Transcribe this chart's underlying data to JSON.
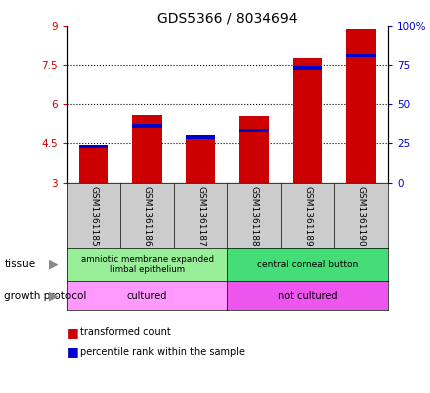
{
  "title": "GDS5366 / 8034694",
  "samples": [
    "GSM1361185",
    "GSM1361186",
    "GSM1361187",
    "GSM1361188",
    "GSM1361189",
    "GSM1361190"
  ],
  "transformed_counts": [
    4.45,
    5.6,
    4.78,
    5.55,
    7.75,
    8.85
  ],
  "percentile_ranks": [
    22,
    35,
    28,
    32,
    72,
    80
  ],
  "y_min": 3,
  "y_max": 9,
  "y_ticks": [
    3,
    4.5,
    6,
    7.5,
    9
  ],
  "y_tick_labels": [
    "3",
    "4.5",
    "6",
    "7.5",
    "9"
  ],
  "right_y_ticks": [
    0,
    25,
    50,
    75,
    100
  ],
  "right_y_tick_labels": [
    "0",
    "25",
    "50",
    "75",
    "100%"
  ],
  "bar_color_red": "#cc0000",
  "bar_color_blue": "#0000cc",
  "bar_width": 0.55,
  "tissue_label": "tissue",
  "growth_label": "growth protocol",
  "tissue_left_label": "amniotic membrane expanded\nlimbal epithelium",
  "tissue_right_label": "central corneal button",
  "growth_left_label": "cultured",
  "growth_right_label": "not cultured",
  "tissue_left_color": "#99ee99",
  "tissue_right_color": "#44dd77",
  "growth_left_color": "#ff99ff",
  "growth_right_color": "#ee55ee",
  "sample_box_color": "#cccccc",
  "legend_red_label": "transformed count",
  "legend_blue_label": "percentile rank within the sample",
  "left_tick_color": "#cc0000",
  "right_tick_color": "#0000cc"
}
